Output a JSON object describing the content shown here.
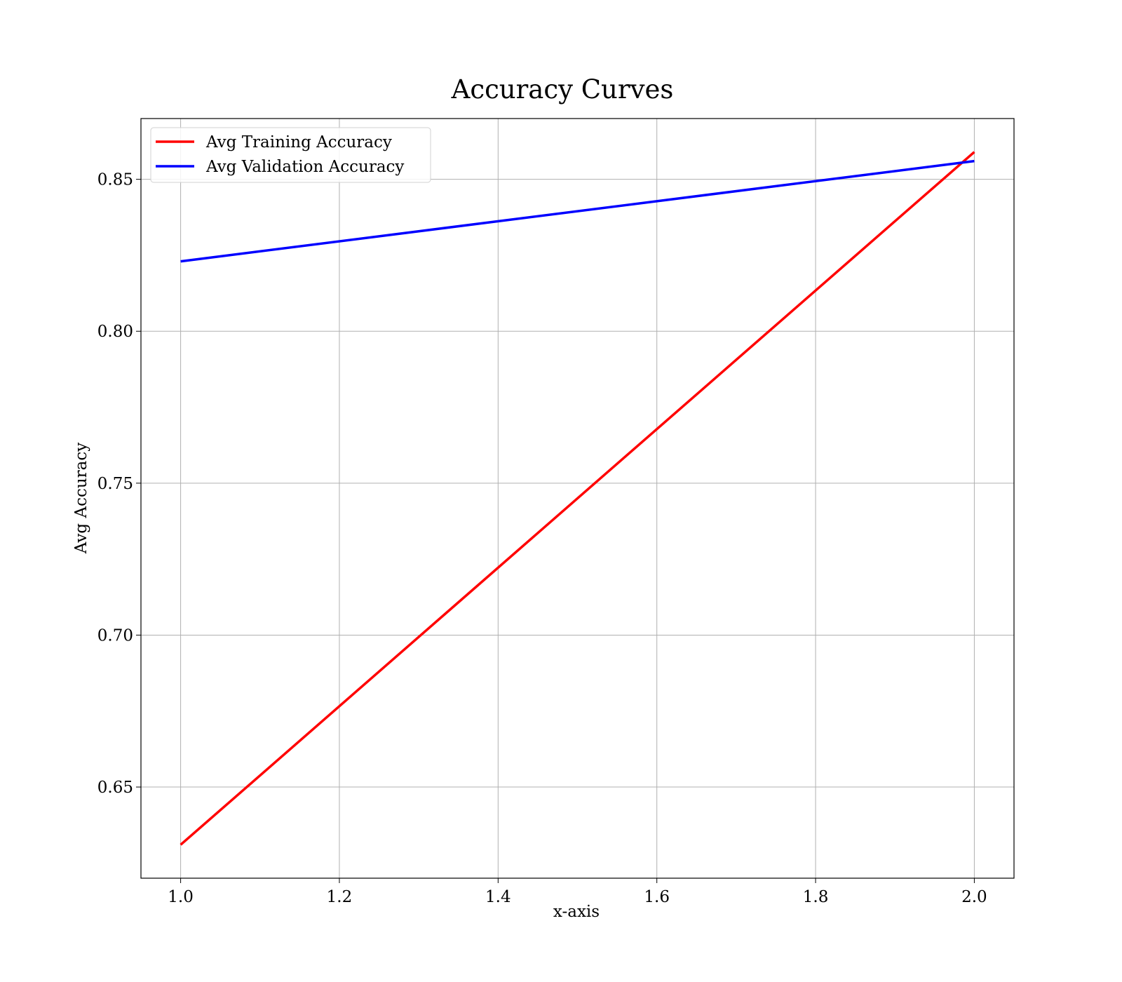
{
  "chart_data": {
    "type": "line",
    "title": "Accuracy Curves",
    "xlabel": "x-axis",
    "ylabel": "Avg Accuracy",
    "xlim": [
      0.95,
      2.05
    ],
    "ylim": [
      0.62,
      0.87
    ],
    "x_ticks": [
      1.0,
      1.2,
      1.4,
      1.6,
      1.8,
      2.0
    ],
    "x_tick_labels": [
      "1.0",
      "1.2",
      "1.4",
      "1.6",
      "1.8",
      "2.0"
    ],
    "y_ticks": [
      0.65,
      0.7,
      0.75,
      0.8,
      0.85
    ],
    "y_tick_labels": [
      "0.65",
      "0.70",
      "0.75",
      "0.80",
      "0.85"
    ],
    "grid": true,
    "legend_position": "upper-left",
    "series": [
      {
        "name": "Avg Training Accuracy",
        "color": "#ff0000",
        "x": [
          1.0,
          2.0
        ],
        "y": [
          0.631,
          0.859
        ]
      },
      {
        "name": "Avg Validation Accuracy",
        "color": "#0000ff",
        "x": [
          1.0,
          2.0
        ],
        "y": [
          0.823,
          0.856
        ]
      }
    ]
  }
}
